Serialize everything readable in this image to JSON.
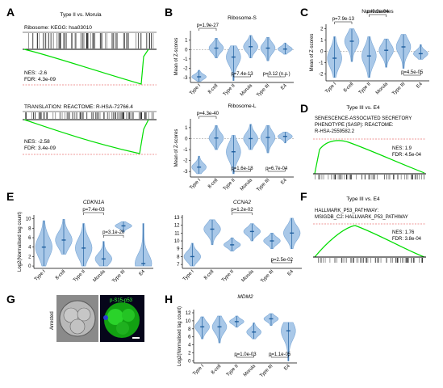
{
  "panel_labels": {
    "a": "A",
    "b": "B",
    "c": "C",
    "d": "D",
    "e": "E",
    "f": "F",
    "g": "G",
    "h": "H"
  },
  "gsea": {
    "A": {
      "title": "Type II vs. Morula",
      "plots": [
        {
          "gene_set": "Ribosome: KEGG: hsa03010",
          "nes": "NES: -2.6",
          "fdr": "FDR: 4.3e-09"
        },
        {
          "gene_set": "TRANSLATION: REACTOME: R-HSA-72766.4",
          "nes": "NES: -2.58",
          "fdr": "FDR: 3.4e-09"
        }
      ]
    },
    "D": {
      "title": "Type III vs. E4",
      "gene_set_lines": [
        "SENESCENCE-ASSOCIATED SECRETORY",
        "PHENOTYPE (SASP): REACTOME:",
        "R-HSA-2559582.2"
      ],
      "nes": "NES: 1.9",
      "fdr": "FDR: 4.5e-04"
    },
    "F": {
      "title": "Type III vs. E4",
      "gene_set_lines": [
        "HALLMARK_P53_PATHWAY:",
        "MSIGDB_C2: HALLMARK_P53_PATHWAY"
      ],
      "nes": "NES: 1.76",
      "fdr": "FDR: 3.8e-04"
    }
  },
  "panel_g": {
    "label_arrested": "Arrested",
    "label_stain": "p-S15-p53"
  },
  "colors": {
    "violin_fill": "#a9c8e8",
    "violin_stroke": "#7aa7d6",
    "point_dark": "#1f5f9f",
    "gsea_curve": "#00dd00",
    "zero_line": "#e03030"
  },
  "chart_data": [
    {
      "id": "B-top",
      "type": "violin",
      "title": "Ribosome-S",
      "ylabel": "Mean of Z-scores",
      "categories": [
        "Type I",
        "8-cell",
        "Type II",
        "Morula",
        "Type III",
        "E4"
      ],
      "ylim": [
        -3.5,
        2
      ],
      "yticks": [
        -3,
        -2,
        -1,
        0,
        1
      ],
      "hline": 0,
      "medians": [
        -2.9,
        0.15,
        -0.8,
        0.3,
        0.15,
        0.05
      ],
      "ranges": [
        [
          -3.4,
          -2.2
        ],
        [
          -0.9,
          1.2
        ],
        [
          -3.3,
          0.4
        ],
        [
          -0.9,
          1.5
        ],
        [
          -1.2,
          1.3
        ],
        [
          -0.5,
          0.7
        ]
      ],
      "comparisons": [
        {
          "from": 0,
          "to": 1,
          "text": "p=1.9e-27",
          "side": "top"
        },
        {
          "from": 2,
          "to": 3,
          "text": "p=7.4e-13",
          "side": "bottom"
        },
        {
          "from": 4,
          "to": 5,
          "text": "p=0.12 (n.s.)",
          "side": "bottom"
        }
      ]
    },
    {
      "id": "B-bottom",
      "type": "violin",
      "title": "Ribosome-L",
      "ylabel": "Mean of Z-scores",
      "categories": [
        "Type I",
        "8-cell",
        "Type II",
        "Morula",
        "Type III",
        "E4"
      ],
      "ylim": [
        -3.5,
        1.8
      ],
      "yticks": [
        -3,
        -2,
        -1,
        0,
        1
      ],
      "hline": 0,
      "medians": [
        -2.6,
        0.05,
        -1.2,
        0.0,
        0.1,
        0.2
      ],
      "ranges": [
        [
          -3.2,
          -1.6
        ],
        [
          -1.0,
          1.2
        ],
        [
          -3.2,
          0.3
        ],
        [
          -1.0,
          1.3
        ],
        [
          -1.3,
          1.2
        ],
        [
          -0.4,
          0.6
        ]
      ],
      "comparisons": [
        {
          "from": 0,
          "to": 1,
          "text": "p=4.3e-40",
          "side": "top"
        },
        {
          "from": 2,
          "to": 3,
          "text": "p=1.6e-18",
          "side": "bottom"
        },
        {
          "from": 4,
          "to": 5,
          "text": "p=6.7e-04",
          "side": "bottom"
        }
      ]
    },
    {
      "id": "C",
      "type": "violin",
      "title": "Nucleosomes",
      "ylabel": "Mean of Z-scores",
      "categories": [
        "Type I",
        "8-cell",
        "Type II",
        "Morula",
        "Type III",
        "E4"
      ],
      "ylim": [
        -2.6,
        2.4
      ],
      "yticks": [
        -2,
        -1,
        0,
        1,
        2
      ],
      "hline": 0,
      "medians": [
        -0.6,
        0.9,
        -0.4,
        0.1,
        0.4,
        -0.2
      ],
      "ranges": [
        [
          -2.3,
          1.3
        ],
        [
          -0.9,
          2.0
        ],
        [
          -2.3,
          1.3
        ],
        [
          -1.4,
          1.1
        ],
        [
          -1.5,
          1.5
        ],
        [
          -0.7,
          0.6
        ]
      ],
      "comparisons": [
        {
          "from": 0,
          "to": 1,
          "text": "p=7.9e-13",
          "side": "top"
        },
        {
          "from": 2,
          "to": 3,
          "text": "p=9.0e-04",
          "side": "top",
          "level": 2
        },
        {
          "from": 4,
          "to": 5,
          "text": "p=4.5e-05",
          "side": "bottom"
        }
      ]
    },
    {
      "id": "E-left",
      "type": "violin",
      "title": "CDKN1A",
      "ylabel": "Log2(Normalised tag count)",
      "categories": [
        "Type I",
        "8-cell",
        "Type II",
        "Morula",
        "Type III",
        "E4"
      ],
      "ylim": [
        -0.5,
        10.8
      ],
      "yticks": [
        0,
        2,
        4,
        6,
        8,
        10
      ],
      "hline": null,
      "medians": [
        4.0,
        5.5,
        3.8,
        1.5,
        8.5,
        0.5
      ],
      "ranges": [
        [
          0.0,
          9.6
        ],
        [
          2.5,
          9.9
        ],
        [
          0.0,
          9.0
        ],
        [
          0.0,
          5.2
        ],
        [
          7.2,
          9.4
        ],
        [
          0.0,
          9.0
        ]
      ],
      "comparisons": [
        {
          "from": 2,
          "to": 3,
          "text": "p=7.4e-03",
          "side": "top"
        },
        {
          "from": 3,
          "to": 4,
          "text": "p=3.1e-20",
          "side": "mid"
        }
      ]
    },
    {
      "id": "E-right",
      "type": "violin",
      "title": "CCNA2",
      "ylabel": "",
      "categories": [
        "Type I",
        "8-cell",
        "Type II",
        "Morula",
        "Type III",
        "E4"
      ],
      "ylim": [
        6.5,
        13.3
      ],
      "yticks": [
        7,
        8,
        9,
        10,
        11,
        12,
        13
      ],
      "hline": null,
      "medians": [
        8.0,
        11.5,
        9.5,
        11.2,
        10.0,
        11.0
      ],
      "ranges": [
        [
          6.8,
          9.7
        ],
        [
          9.5,
          12.7
        ],
        [
          8.7,
          10.4
        ],
        [
          10.0,
          12.2
        ],
        [
          9.0,
          11.0
        ],
        [
          9.0,
          12.9
        ]
      ],
      "comparisons": [
        {
          "from": 2,
          "to": 3,
          "text": "p=1.2e-02",
          "side": "top"
        },
        {
          "from": 4,
          "to": 5,
          "text": "p=2.5e-02",
          "side": "bottom"
        }
      ]
    },
    {
      "id": "H",
      "type": "violin",
      "title": "MDM2",
      "ylabel": "Log2(Normalised tag count)",
      "categories": [
        "Type I",
        "8-cell",
        "Type II",
        "Morula",
        "Type III",
        "E4"
      ],
      "ylim": [
        -0.5,
        12.8
      ],
      "yticks": [
        0,
        2,
        4,
        6,
        8,
        10,
        12
      ],
      "hline": null,
      "medians": [
        8.5,
        8.5,
        9.8,
        7.2,
        10.5,
        7.5
      ],
      "ranges": [
        [
          5.5,
          11.0
        ],
        [
          4.5,
          11.2
        ],
        [
          8.4,
          11.2
        ],
        [
          5.5,
          9.5
        ],
        [
          8.8,
          11.8
        ],
        [
          0.0,
          9.6
        ]
      ],
      "comparisons": [
        {
          "from": 2,
          "to": 3,
          "text": "p=1.0e-03",
          "side": "bottom"
        },
        {
          "from": 4,
          "to": 5,
          "text": "p=1.1e-05",
          "side": "bottom"
        }
      ]
    }
  ]
}
